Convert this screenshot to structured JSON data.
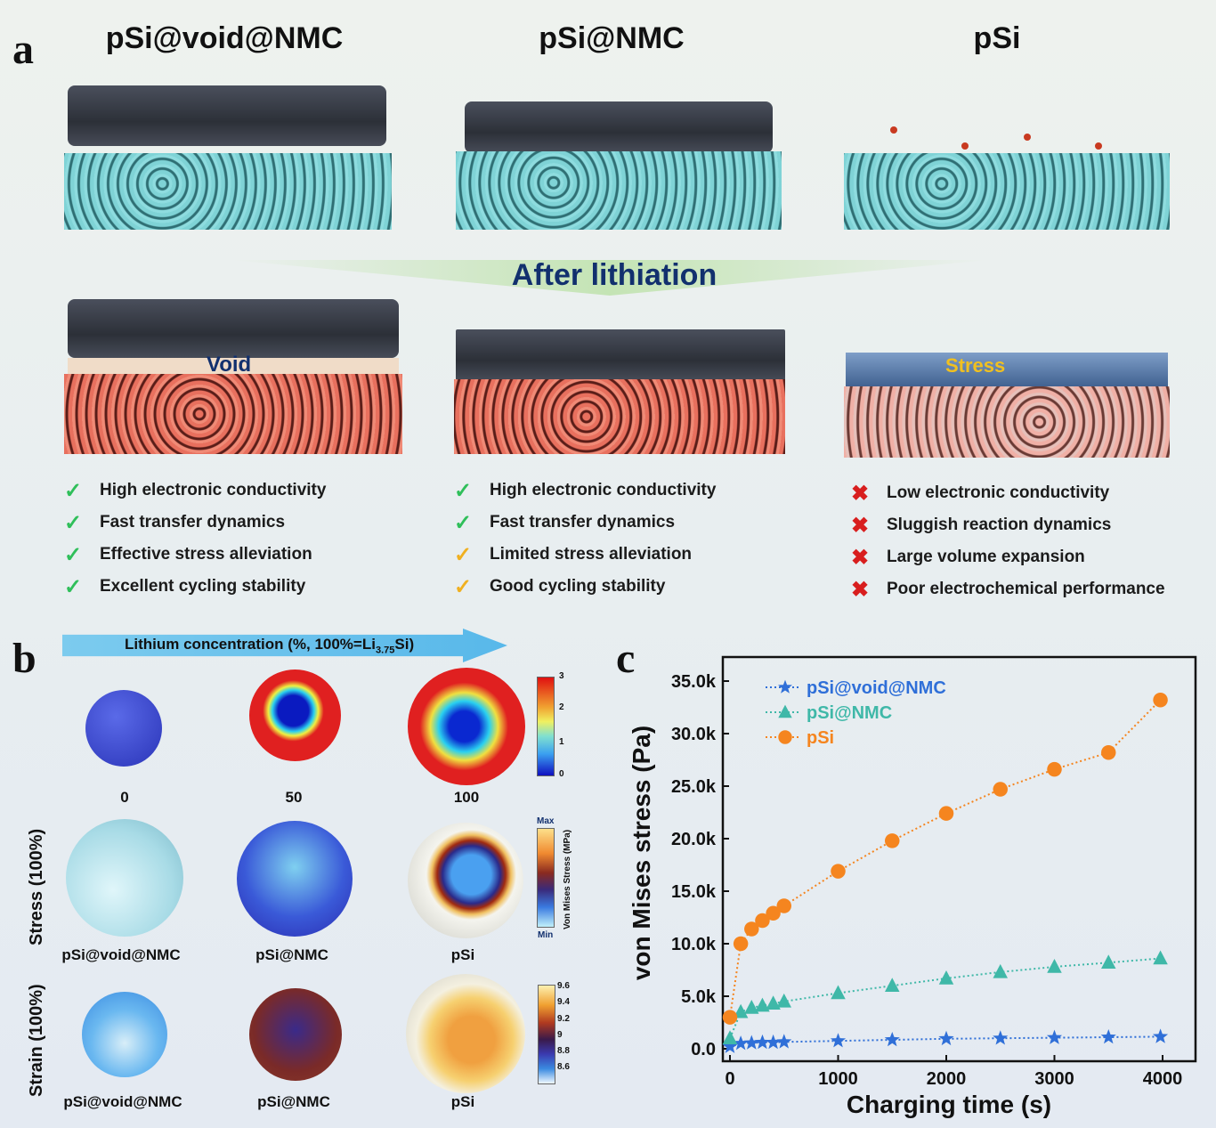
{
  "panel_a": {
    "label": "a",
    "columns": [
      {
        "title": "pSi@void@NMC",
        "overlay": "Void",
        "features": [
          [
            "check",
            "High electronic conductivity"
          ],
          [
            "check",
            "Fast transfer dynamics"
          ],
          [
            "check",
            "Effective stress alleviation"
          ],
          [
            "check",
            "Excellent cycling stability"
          ]
        ]
      },
      {
        "title": "pSi@NMC",
        "overlay": "",
        "features": [
          [
            "check",
            "High electronic conductivity"
          ],
          [
            "check",
            "Fast  transfer dynamics"
          ],
          [
            "partial",
            "Limited stress alleviation"
          ],
          [
            "partial",
            "Good cycling stability"
          ]
        ]
      },
      {
        "title": "pSi",
        "overlay": "Stress",
        "features": [
          [
            "cross",
            "Low electronic conductivity"
          ],
          [
            "cross",
            "Sluggish reaction dynamics"
          ],
          [
            "cross",
            "Large volume expansion"
          ],
          [
            "cross",
            "Poor electrochemical performance"
          ]
        ]
      }
    ],
    "after_label": "After lithiation",
    "colors": {
      "check": "#2fbf5a",
      "partial": "#f0b020",
      "cross": "#d81e1e",
      "title_blue": "#12306e"
    }
  },
  "panel_b": {
    "label": "b",
    "arrow_label_main": "Lithium concentration (%, 100%=Li",
    "arrow_sub": "3.75",
    "arrow_end": "Si)",
    "concentrations": [
      "0",
      "50",
      "100"
    ],
    "row_labels": [
      "Stress (100%)",
      "Strain (100%)"
    ],
    "samples": [
      "pSi@void@NMC",
      "pSi@NMC",
      "pSi"
    ],
    "colorbar1": [
      "3",
      "2",
      "1",
      "0"
    ],
    "colorbar2": {
      "max": "Max",
      "min": "Min",
      "title": "Von Mises Stress (MPa)"
    },
    "colorbar3": [
      "9.6",
      "9.4",
      "9.2",
      "9",
      "8.8",
      "8.6"
    ]
  },
  "panel_c": {
    "label": "c"
  },
  "chart_data": {
    "type": "line",
    "xlabel": "Charging time (s)",
    "ylabel": "von Mises stress (Pa)",
    "xlim": [
      -100,
      4200
    ],
    "ylim": [
      0,
      37500
    ],
    "xticks": [
      "0",
      "1000",
      "2000",
      "3000",
      "4000"
    ],
    "yticks": [
      "0.0",
      "5.0k",
      "10.0k",
      "15.0k",
      "20.0k",
      "25.0k",
      "30.0k",
      "35.0k"
    ],
    "legend": "top-left",
    "grid": false,
    "x": [
      0,
      100,
      200,
      300,
      400,
      500,
      1000,
      1500,
      2000,
      2500,
      3000,
      3500,
      3980
    ],
    "series": [
      {
        "name": "pSi@void@NMC",
        "marker": "star",
        "color": "#2f6fd8",
        "values": [
          200,
          500,
          550,
          600,
          600,
          650,
          750,
          850,
          950,
          1000,
          1050,
          1100,
          1150
        ]
      },
      {
        "name": "pSi@NMC",
        "marker": "triangle",
        "color": "#3fb8a8",
        "values": [
          1000,
          3500,
          3900,
          4100,
          4300,
          4500,
          5300,
          6000,
          6700,
          7300,
          7800,
          8200,
          8600
        ]
      },
      {
        "name": "pSi",
        "marker": "circle",
        "color": "#f5851f",
        "values": [
          3000,
          10000,
          11400,
          12200,
          12900,
          13600,
          16900,
          19800,
          22400,
          24700,
          26600,
          28200,
          33200
        ]
      }
    ]
  }
}
